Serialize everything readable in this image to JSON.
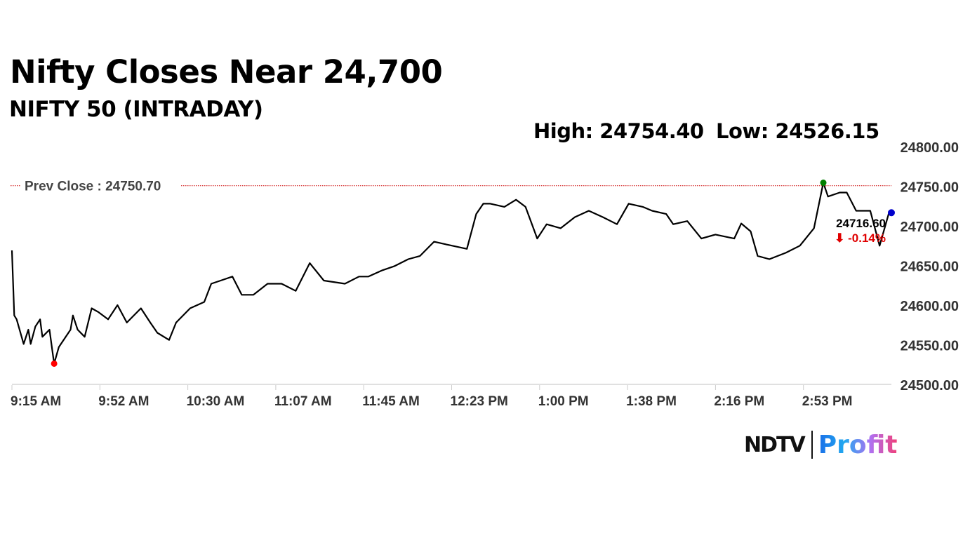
{
  "header": {
    "title": "Nifty Closes Near 24,700",
    "subtitle": "NIFTY 50 (INTRADAY)",
    "high": "High: 24754.40",
    "low": "Low: 24526.15"
  },
  "logo": {
    "brand": "NDTV",
    "product": "Profit"
  },
  "chart_data": {
    "type": "line",
    "title": "Nifty Closes Near 24,700",
    "subtitle": "NIFTY 50 (INTRADAY)",
    "x_ticks": [
      "9:15 AM",
      "9:52 AM",
      "10:30 AM",
      "11:07 AM",
      "11:45 AM",
      "12:23 PM",
      "1:00 PM",
      "1:38 PM",
      "2:16 PM",
      "2:53 PM"
    ],
    "y_ticks": [
      "24800.00",
      "24750.00",
      "24700.00",
      "24650.00",
      "24600.00",
      "24550.00",
      "24500.00"
    ],
    "ylim": [
      24500,
      24800
    ],
    "xlim": [
      "9:15",
      "15:30"
    ],
    "grid": false,
    "prev_close": {
      "label": "Prev Close : 24750.70",
      "value": 24750.7,
      "color": "#cc0000"
    },
    "high": {
      "time": "15:01",
      "value": 24754.4,
      "color": "#008000"
    },
    "low": {
      "time": "9:33",
      "value": 24526.15,
      "color": "#ff0000"
    },
    "last": {
      "time": "15:29",
      "value": 24716.6,
      "label": "24716.60",
      "change": "⬇ -0.14%",
      "color": "#0000cc",
      "change_color": "#e00000"
    },
    "line_color": "#000000",
    "points": [
      [
        "9:15",
        24669
      ],
      [
        "9:16",
        24587
      ],
      [
        "9:17",
        24582
      ],
      [
        "9:20",
        24551
      ],
      [
        "9:22",
        24569
      ],
      [
        "9:23",
        24551
      ],
      [
        "9:25",
        24573
      ],
      [
        "9:27",
        24582
      ],
      [
        "9:28",
        24560
      ],
      [
        "9:31",
        24569
      ],
      [
        "9:33",
        24526.15
      ],
      [
        "9:35",
        24547
      ],
      [
        "9:40",
        24569
      ],
      [
        "9:41",
        24587
      ],
      [
        "9:43",
        24569
      ],
      [
        "9:46",
        24560
      ],
      [
        "9:49",
        24596
      ],
      [
        "9:52",
        24591
      ],
      [
        "9:56",
        24582
      ],
      [
        "10:00",
        24600
      ],
      [
        "10:04",
        24578
      ],
      [
        "10:10",
        24596
      ],
      [
        "10:14",
        24578
      ],
      [
        "10:17",
        24565
      ],
      [
        "10:22",
        24556
      ],
      [
        "10:25",
        24578
      ],
      [
        "10:31",
        24596
      ],
      [
        "10:37",
        24604
      ],
      [
        "10:40",
        24627
      ],
      [
        "10:44",
        24631
      ],
      [
        "10:49",
        24636
      ],
      [
        "10:53",
        24613
      ],
      [
        "10:58",
        24613
      ],
      [
        "11:04",
        24627
      ],
      [
        "11:10",
        24627
      ],
      [
        "11:16",
        24618
      ],
      [
        "11:22",
        24653
      ],
      [
        "11:28",
        24631
      ],
      [
        "11:37",
        24627
      ],
      [
        "11:43",
        24636
      ],
      [
        "11:47",
        24636
      ],
      [
        "11:53",
        24644
      ],
      [
        "11:58",
        24649
      ],
      [
        "12:04",
        24658
      ],
      [
        "12:09",
        24662
      ],
      [
        "12:15",
        24680
      ],
      [
        "12:21",
        24676
      ],
      [
        "12:29",
        24671
      ],
      [
        "12:33",
        24715
      ],
      [
        "12:36",
        24728
      ],
      [
        "12:39",
        24728
      ],
      [
        "12:45",
        24724
      ],
      [
        "12:50",
        24733
      ],
      [
        "12:54",
        24724
      ],
      [
        "12:59",
        24684
      ],
      [
        "13:03",
        24702
      ],
      [
        "13:09",
        24697
      ],
      [
        "13:15",
        24711
      ],
      [
        "13:21",
        24719
      ],
      [
        "13:27",
        24711
      ],
      [
        "13:33",
        24702
      ],
      [
        "13:38",
        24728
      ],
      [
        "13:44",
        24724
      ],
      [
        "13:48",
        24719
      ],
      [
        "13:54",
        24715
      ],
      [
        "13:57",
        24702
      ],
      [
        "14:03",
        24706
      ],
      [
        "14:09",
        24684
      ],
      [
        "14:15",
        24689
      ],
      [
        "14:23",
        24684
      ],
      [
        "14:26",
        24703
      ],
      [
        "14:30",
        24693
      ],
      [
        "14:33",
        24662
      ],
      [
        "14:38",
        24658
      ],
      [
        "14:45",
        24666
      ],
      [
        "14:51",
        24675
      ],
      [
        "14:57",
        24697
      ],
      [
        "15:01",
        24754.4
      ],
      [
        "15:03",
        24737
      ],
      [
        "15:08",
        24742
      ],
      [
        "15:11",
        24742
      ],
      [
        "15:15",
        24719
      ],
      [
        "15:21",
        24719
      ],
      [
        "15:25",
        24675
      ],
      [
        "15:29",
        24716.6
      ]
    ]
  }
}
